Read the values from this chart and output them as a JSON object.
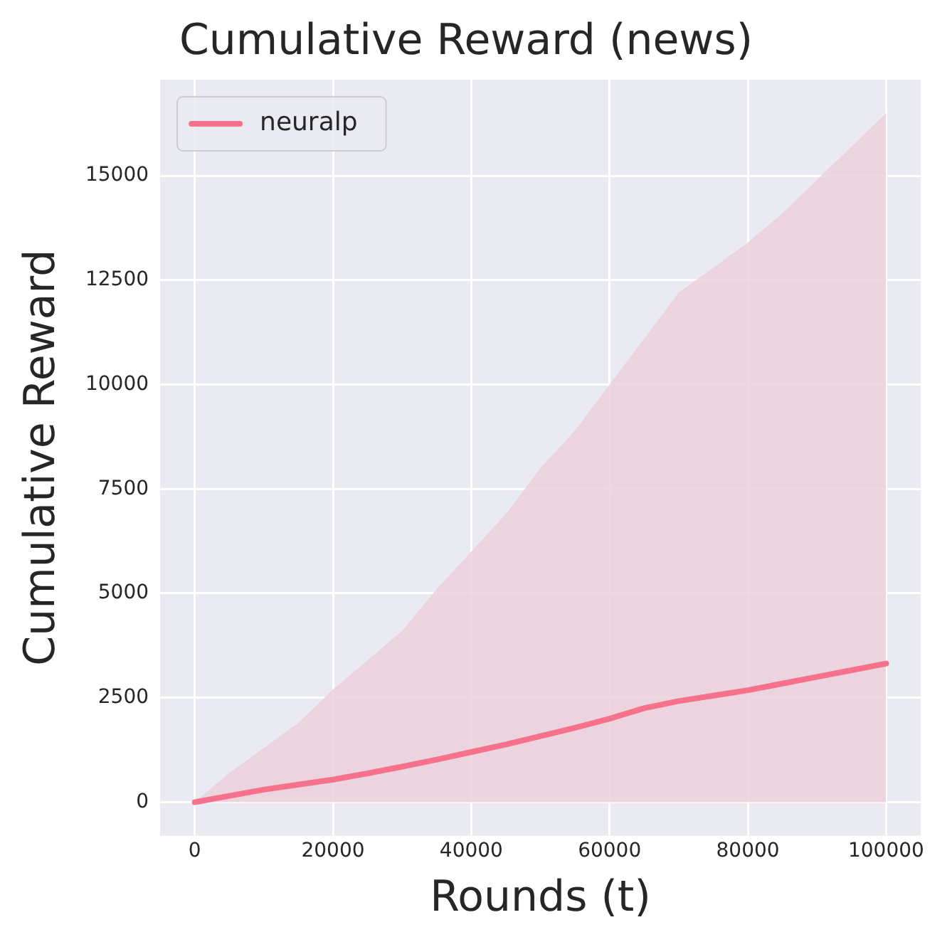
{
  "chart_data": {
    "type": "line",
    "title": "Cumulative Reward (news)",
    "xlabel": "Rounds (t)",
    "ylabel": "Cumulative Reward",
    "x": [
      0,
      5000,
      10000,
      15000,
      20000,
      25000,
      30000,
      35000,
      40000,
      45000,
      50000,
      55000,
      60000,
      65000,
      70000,
      75000,
      80000,
      85000,
      90000,
      95000,
      100000
    ],
    "series": [
      {
        "name": "neuralp",
        "color": "#f6718c",
        "values": [
          0,
          150,
          300,
          420,
          540,
          690,
          850,
          1020,
          1200,
          1380,
          1580,
          1780,
          2000,
          2250,
          2420,
          2550,
          2680,
          2840,
          3000,
          3160,
          3320
        ]
      },
      {
        "type": "area",
        "color": "#ecd0dc",
        "values": [
          0,
          700,
          1300,
          1900,
          2700,
          3400,
          4100,
          5100,
          6000,
          6900,
          8000,
          8900,
          10000,
          11100,
          12200,
          12800,
          13400,
          14100,
          14900,
          15700,
          16500
        ]
      }
    ],
    "xlim": [
      -5000,
      105000
    ],
    "xticks": [
      0,
      20000,
      40000,
      60000,
      80000,
      100000
    ],
    "ylim": [
      -800,
      17300
    ],
    "yticks": [
      0,
      2500,
      5000,
      7500,
      10000,
      12500,
      15000
    ],
    "grid": true,
    "legend": "top left",
    "line_style": "solid",
    "marker": "none"
  }
}
